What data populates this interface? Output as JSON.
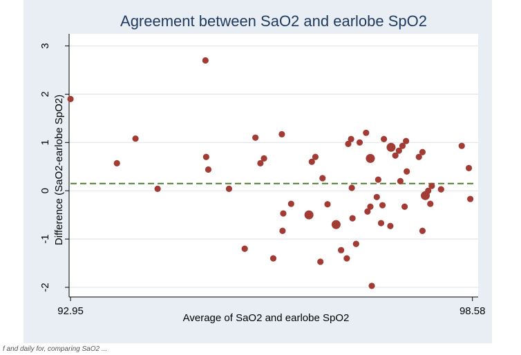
{
  "chart_data": {
    "type": "scatter",
    "title": "Agreement between SaO2 and earlobe SpO2",
    "xlabel": "Average of SaO2 and earlobe SpO2",
    "ylabel": "Difference (SaO2-earlobe SpO2)",
    "x_ticks": [
      "92.95",
      "98.58"
    ],
    "x_tick_values": [
      92.95,
      98.58
    ],
    "y_ticks": [
      -2,
      -1,
      0,
      1,
      2,
      3
    ],
    "xlim": [
      92.93,
      98.66
    ],
    "ylim": [
      -2.2,
      3.25
    ],
    "grid": true,
    "mean_difference": 0.15,
    "colors": {
      "points": "#a33b35",
      "mean_line": "#4f7d2d",
      "background": "#e8eef3",
      "plot": "#ffffff",
      "title": "#1f3a60"
    },
    "points": [
      {
        "x": 92.95,
        "y": 1.9,
        "s": 1
      },
      {
        "x": 93.6,
        "y": 0.57,
        "s": 1
      },
      {
        "x": 93.86,
        "y": 1.08,
        "s": 1
      },
      {
        "x": 94.17,
        "y": 0.04,
        "s": 1
      },
      {
        "x": 94.84,
        "y": 2.7,
        "s": 1
      },
      {
        "x": 94.85,
        "y": 0.7,
        "s": 1
      },
      {
        "x": 94.88,
        "y": 0.44,
        "s": 1
      },
      {
        "x": 95.17,
        "y": 0.04,
        "s": 1
      },
      {
        "x": 95.39,
        "y": -1.2,
        "s": 1
      },
      {
        "x": 95.54,
        "y": 1.1,
        "s": 1
      },
      {
        "x": 95.61,
        "y": 0.57,
        "s": 1
      },
      {
        "x": 95.66,
        "y": 0.67,
        "s": 1
      },
      {
        "x": 95.79,
        "y": -1.4,
        "s": 1
      },
      {
        "x": 95.91,
        "y": 1.17,
        "s": 1
      },
      {
        "x": 95.92,
        "y": -0.83,
        "s": 1
      },
      {
        "x": 95.93,
        "y": -0.47,
        "s": 1
      },
      {
        "x": 96.04,
        "y": -0.27,
        "s": 1
      },
      {
        "x": 96.29,
        "y": -0.5,
        "s": 2
      },
      {
        "x": 96.33,
        "y": 0.6,
        "s": 1
      },
      {
        "x": 96.38,
        "y": 0.7,
        "s": 1
      },
      {
        "x": 96.45,
        "y": -1.47,
        "s": 1
      },
      {
        "x": 96.48,
        "y": 0.26,
        "s": 1
      },
      {
        "x": 96.55,
        "y": -0.28,
        "s": 1
      },
      {
        "x": 96.67,
        "y": -0.7,
        "s": 2
      },
      {
        "x": 96.74,
        "y": -1.23,
        "s": 1
      },
      {
        "x": 96.82,
        "y": -1.4,
        "s": 1
      },
      {
        "x": 96.84,
        "y": 0.97,
        "s": 1
      },
      {
        "x": 96.88,
        "y": 1.07,
        "s": 1
      },
      {
        "x": 96.89,
        "y": 0.06,
        "s": 1
      },
      {
        "x": 96.9,
        "y": -0.57,
        "s": 1
      },
      {
        "x": 96.95,
        "y": -1.1,
        "s": 1
      },
      {
        "x": 97.0,
        "y": 1.0,
        "s": 1
      },
      {
        "x": 97.09,
        "y": 1.2,
        "s": 1
      },
      {
        "x": 97.11,
        "y": -0.43,
        "s": 1
      },
      {
        "x": 97.15,
        "y": 0.67,
        "s": 2
      },
      {
        "x": 97.15,
        "y": -0.33,
        "s": 1
      },
      {
        "x": 97.17,
        "y": -1.97,
        "s": 1
      },
      {
        "x": 97.24,
        "y": -0.13,
        "s": 1
      },
      {
        "x": 97.26,
        "y": 0.23,
        "s": 1
      },
      {
        "x": 97.3,
        "y": -0.67,
        "s": 1
      },
      {
        "x": 97.32,
        "y": -0.3,
        "s": 1
      },
      {
        "x": 97.34,
        "y": 1.07,
        "s": 1
      },
      {
        "x": 97.43,
        "y": -0.73,
        "s": 1
      },
      {
        "x": 97.44,
        "y": 0.9,
        "s": 2
      },
      {
        "x": 97.5,
        "y": 0.73,
        "s": 1
      },
      {
        "x": 97.55,
        "y": 0.83,
        "s": 1
      },
      {
        "x": 97.57,
        "y": 0.2,
        "s": 1
      },
      {
        "x": 97.6,
        "y": 0.93,
        "s": 1
      },
      {
        "x": 97.63,
        "y": -0.33,
        "s": 1
      },
      {
        "x": 97.65,
        "y": 1.03,
        "s": 1
      },
      {
        "x": 97.66,
        "y": 0.4,
        "s": 1
      },
      {
        "x": 97.83,
        "y": 0.7,
        "s": 1
      },
      {
        "x": 97.88,
        "y": 0.8,
        "s": 1
      },
      {
        "x": 97.88,
        "y": -0.83,
        "s": 1
      },
      {
        "x": 97.92,
        "y": -0.1,
        "s": 2
      },
      {
        "x": 97.96,
        "y": 0.0,
        "s": 1
      },
      {
        "x": 97.99,
        "y": -0.27,
        "s": 1
      },
      {
        "x": 98.01,
        "y": 0.1,
        "s": 1
      },
      {
        "x": 98.14,
        "y": 0.03,
        "s": 1
      },
      {
        "x": 98.43,
        "y": 0.93,
        "s": 1
      },
      {
        "x": 98.53,
        "y": 0.47,
        "s": 1
      },
      {
        "x": 98.55,
        "y": -0.17,
        "s": 1
      }
    ]
  },
  "caption": "f and daily for, comparing SaO2 ..."
}
